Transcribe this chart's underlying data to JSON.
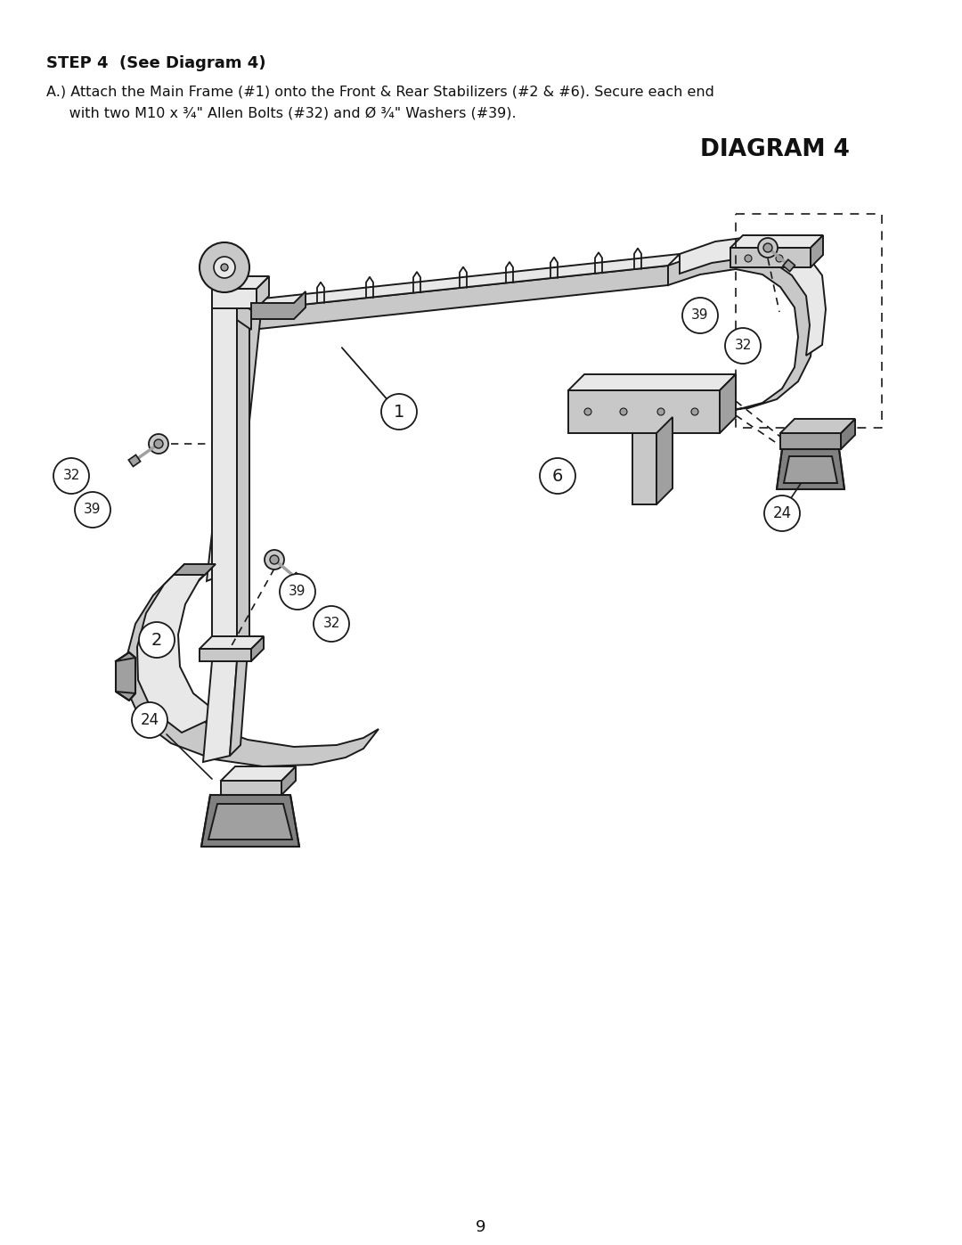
{
  "page_background": "#ffffff",
  "title_step": "STEP 4  (See Diagram 4)",
  "instruction_line1": "A.) Attach the Main Frame (#1) onto the Front & Rear Stabilizers (#2 & #6). Secure each end",
  "instruction_line2": "     with two M10 x ¾\" Allen Bolts (#32) and Ø ¾\" Washers (#39).",
  "diagram_title": "DIAGRAM 4",
  "page_number": "9",
  "fig_width": 10.8,
  "fig_height": 13.97,
  "dpi": 100,
  "line_color": "#1a1a1a",
  "fill_light": "#e8e8e8",
  "fill_mid": "#c8c8c8",
  "fill_dark": "#a0a0a0",
  "fill_darkest": "#808080"
}
